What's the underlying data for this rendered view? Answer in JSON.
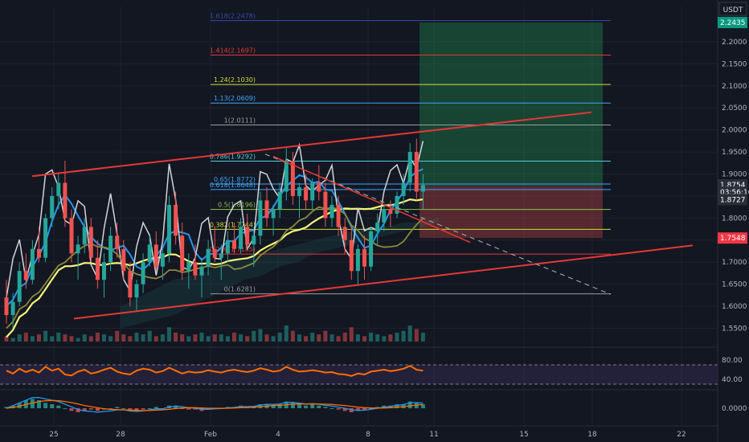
{
  "currency": "USDT",
  "colors": {
    "bg": "#131722",
    "grid": "#1e2230",
    "axis_text": "#b2b5be",
    "bull": "#26a69a",
    "bear": "#ef5350",
    "ma_yellow": "#f5f57a",
    "line_blue": "#2196f3",
    "line_white": "#d1d4dc",
    "line_olive": "#8a8a3c",
    "trend_red": "#e53935",
    "rsi_line": "#ff6d00",
    "macd_blue": "#2196f3",
    "macd_orange": "#ff6d00"
  },
  "price_axis": {
    "ticks": [
      "2.2000",
      "2.1500",
      "2.1000",
      "2.0500",
      "2.0000",
      "1.9500",
      "1.9000",
      "1.8500",
      "1.8000",
      "1.7500",
      "1.7000",
      "1.6500",
      "1.6000",
      "1.5500"
    ],
    "tick_values": [
      2.2,
      2.15,
      2.1,
      2.05,
      2.0,
      1.95,
      1.9,
      1.85,
      1.8,
      1.75,
      1.7,
      1.65,
      1.6,
      1.55
    ],
    "badges": [
      {
        "label": "2.2435",
        "value": 2.2435,
        "color": "#089981"
      },
      {
        "label": "1.8754",
        "value": 1.8754,
        "color": "#2a2e39"
      },
      {
        "label": "03:56:16",
        "value": 1.8588,
        "color": "#2a2e39"
      },
      {
        "label": "1.8727",
        "value": 1.842,
        "color": "#2a2e39"
      },
      {
        "label": "1.7548",
        "value": 1.7548,
        "color": "#f23645"
      }
    ]
  },
  "rsi_axis": {
    "ticks": [
      "80.00",
      "40.00"
    ]
  },
  "macd_axis": {
    "ticks": [
      "0.0000"
    ]
  },
  "time_axis": {
    "ticks": [
      "25",
      "28",
      "Feb",
      "4",
      "8",
      "11",
      "15",
      "18",
      "22"
    ]
  },
  "fib_levels": [
    {
      "label": "1.618(2.2478)",
      "value": 2.2478,
      "color": "#3949ab"
    },
    {
      "label": "1.414(2.1697)",
      "value": 2.1697,
      "color": "#e53935"
    },
    {
      "label": "1.24(2.1030)",
      "value": 2.103,
      "color": "#cddc39"
    },
    {
      "label": "1.13(2.0609)",
      "value": 2.0609,
      "color": "#42a5f5"
    },
    {
      "label": "1(2.0111)",
      "value": 2.0111,
      "color": "#9e9e9e"
    },
    {
      "label": "0.786(1.9292)",
      "value": 1.9292,
      "color": "#4dd0e1"
    },
    {
      "label": "0.65(1.8772)",
      "value": 1.8772,
      "color": "#42a5f5"
    },
    {
      "label": "0.618(1.8648)",
      "value": 1.8648,
      "color": "#42a5f5"
    },
    {
      "label": "0.5(1.8196)",
      "value": 1.8196,
      "color": "#8bc34a"
    },
    {
      "label": "0.382(1.7744)",
      "value": 1.7744,
      "color": "#cddc39"
    },
    {
      "label": "0.236(1.7185)",
      "value": 1.7185,
      "color": "#e53935"
    },
    {
      "label": "0(1.6281)",
      "value": 1.6281,
      "color": "#9e9e9e"
    }
  ],
  "chart_data": {
    "type": "candlestick",
    "symbol_quote": "USDT",
    "x_labels": [
      "25",
      "28",
      "Feb",
      "4",
      "8",
      "11",
      "15",
      "18",
      "22"
    ],
    "y_range": [
      1.52,
      2.28
    ],
    "position": {
      "entry": 1.8727,
      "target": 2.2435,
      "stop": 1.7548
    },
    "candles_ohlc": [
      [
        1.62,
        1.66,
        1.56,
        1.58
      ],
      [
        1.58,
        1.63,
        1.55,
        1.61
      ],
      [
        1.61,
        1.7,
        1.6,
        1.68
      ],
      [
        1.68,
        1.72,
        1.64,
        1.66
      ],
      [
        1.66,
        1.75,
        1.65,
        1.73
      ],
      [
        1.73,
        1.78,
        1.7,
        1.71
      ],
      [
        1.71,
        1.81,
        1.7,
        1.8
      ],
      [
        1.8,
        1.87,
        1.78,
        1.85
      ],
      [
        1.85,
        1.9,
        1.82,
        1.88
      ],
      [
        1.88,
        1.93,
        1.78,
        1.8
      ],
      [
        1.8,
        1.82,
        1.7,
        1.72
      ],
      [
        1.72,
        1.76,
        1.66,
        1.74
      ],
      [
        1.74,
        1.8,
        1.72,
        1.78
      ],
      [
        1.78,
        1.8,
        1.7,
        1.71
      ],
      [
        1.71,
        1.75,
        1.64,
        1.66
      ],
      [
        1.66,
        1.72,
        1.62,
        1.7
      ],
      [
        1.7,
        1.78,
        1.68,
        1.76
      ],
      [
        1.76,
        1.79,
        1.71,
        1.73
      ],
      [
        1.73,
        1.75,
        1.66,
        1.68
      ],
      [
        1.68,
        1.7,
        1.6,
        1.62
      ],
      [
        1.62,
        1.66,
        1.59,
        1.65
      ],
      [
        1.65,
        1.72,
        1.63,
        1.7
      ],
      [
        1.7,
        1.76,
        1.69,
        1.74
      ],
      [
        1.74,
        1.77,
        1.68,
        1.69
      ],
      [
        1.69,
        1.73,
        1.66,
        1.72
      ],
      [
        1.72,
        1.85,
        1.7,
        1.83
      ],
      [
        1.83,
        1.86,
        1.74,
        1.76
      ],
      [
        1.76,
        1.79,
        1.66,
        1.68
      ],
      [
        1.68,
        1.72,
        1.64,
        1.7
      ],
      [
        1.7,
        1.74,
        1.66,
        1.67
      ],
      [
        1.67,
        1.71,
        1.62,
        1.69
      ],
      [
        1.69,
        1.75,
        1.67,
        1.73
      ],
      [
        1.73,
        1.78,
        1.7,
        1.71
      ],
      [
        1.71,
        1.74,
        1.66,
        1.72
      ],
      [
        1.72,
        1.77,
        1.7,
        1.75
      ],
      [
        1.75,
        1.79,
        1.72,
        1.73
      ],
      [
        1.73,
        1.8,
        1.72,
        1.78
      ],
      [
        1.78,
        1.81,
        1.73,
        1.74
      ],
      [
        1.74,
        1.77,
        1.69,
        1.76
      ],
      [
        1.76,
        1.86,
        1.74,
        1.84
      ],
      [
        1.84,
        1.87,
        1.78,
        1.8
      ],
      [
        1.8,
        1.83,
        1.76,
        1.82
      ],
      [
        1.82,
        1.88,
        1.8,
        1.86
      ],
      [
        1.86,
        1.96,
        1.84,
        1.93
      ],
      [
        1.93,
        1.95,
        1.83,
        1.85
      ],
      [
        1.85,
        1.88,
        1.8,
        1.87
      ],
      [
        1.87,
        1.9,
        1.82,
        1.84
      ],
      [
        1.84,
        1.89,
        1.82,
        1.88
      ],
      [
        1.88,
        1.92,
        1.84,
        1.86
      ],
      [
        1.86,
        1.88,
        1.78,
        1.8
      ],
      [
        1.8,
        1.85,
        1.78,
        1.83
      ],
      [
        1.83,
        1.85,
        1.76,
        1.78
      ],
      [
        1.78,
        1.8,
        1.72,
        1.75
      ],
      [
        1.75,
        1.78,
        1.66,
        1.68
      ],
      [
        1.68,
        1.74,
        1.65,
        1.73
      ],
      [
        1.73,
        1.76,
        1.66,
        1.69
      ],
      [
        1.69,
        1.78,
        1.68,
        1.77
      ],
      [
        1.77,
        1.81,
        1.74,
        1.79
      ],
      [
        1.79,
        1.83,
        1.77,
        1.82
      ],
      [
        1.82,
        1.84,
        1.78,
        1.81
      ],
      [
        1.81,
        1.86,
        1.8,
        1.85
      ],
      [
        1.85,
        1.9,
        1.83,
        1.88
      ],
      [
        1.88,
        1.97,
        1.86,
        1.95
      ],
      [
        1.95,
        1.98,
        1.84,
        1.86
      ],
      [
        1.86,
        1.9,
        1.82,
        1.875
      ]
    ],
    "volume": [
      3,
      2,
      4,
      5,
      3,
      4,
      6,
      3,
      5,
      4,
      3,
      2,
      4,
      3,
      5,
      4,
      3,
      6,
      4,
      3,
      5,
      4,
      6,
      3,
      4,
      8,
      5,
      4,
      3,
      4,
      5,
      3,
      4,
      4,
      3,
      5,
      4,
      3,
      6,
      7,
      4,
      3,
      5,
      9,
      6,
      4,
      3,
      5,
      4,
      6,
      4,
      3,
      5,
      8,
      4,
      3,
      5,
      4,
      3,
      4,
      5,
      6,
      9,
      7,
      5
    ],
    "rsi_range": [
      20,
      100
    ],
    "rsi": [
      58,
      52,
      62,
      55,
      60,
      54,
      66,
      58,
      62,
      50,
      48,
      56,
      60,
      52,
      55,
      60,
      64,
      56,
      52,
      50,
      58,
      62,
      60,
      54,
      57,
      64,
      58,
      52,
      56,
      54,
      55,
      59,
      56,
      54,
      58,
      60,
      57,
      55,
      58,
      63,
      60,
      56,
      58,
      66,
      60,
      56,
      57,
      59,
      57,
      54,
      55,
      51,
      50,
      47,
      52,
      50,
      56,
      58,
      60,
      57,
      59,
      62,
      68,
      60,
      58
    ],
    "macd_range": [
      -0.06,
      0.06
    ],
    "macd_hist": [
      0.005,
      0.01,
      0.02,
      0.03,
      0.035,
      0.03,
      0.02,
      0.015,
      0.01,
      0.0,
      -0.01,
      -0.015,
      -0.01,
      -0.005,
      -0.01,
      -0.005,
      0.0,
      0.005,
      0.0,
      -0.005,
      -0.01,
      -0.005,
      0.0,
      0.005,
      0.0,
      0.01,
      0.01,
      0.0,
      -0.005,
      -0.005,
      -0.01,
      -0.005,
      0.0,
      0.0,
      0.005,
      0.005,
      0.01,
      0.005,
      0.005,
      0.015,
      0.015,
      0.01,
      0.015,
      0.025,
      0.02,
      0.015,
      0.01,
      0.015,
      0.01,
      0.005,
      0.0,
      -0.005,
      -0.01,
      -0.015,
      -0.01,
      -0.005,
      0.0,
      0.005,
      0.01,
      0.01,
      0.015,
      0.015,
      0.025,
      0.02,
      0.015
    ],
    "macd_line": [
      0.0,
      0.01,
      0.02,
      0.03,
      0.04,
      0.04,
      0.035,
      0.03,
      0.025,
      0.015,
      0.005,
      -0.005,
      -0.01,
      -0.012,
      -0.015,
      -0.012,
      -0.01,
      -0.006,
      -0.006,
      -0.01,
      -0.012,
      -0.01,
      -0.006,
      -0.002,
      -0.002,
      0.004,
      0.008,
      0.006,
      0.002,
      0.0,
      -0.004,
      -0.004,
      -0.002,
      -0.001,
      0.001,
      0.003,
      0.006,
      0.006,
      0.007,
      0.012,
      0.015,
      0.014,
      0.016,
      0.022,
      0.022,
      0.019,
      0.016,
      0.017,
      0.015,
      0.011,
      0.008,
      0.004,
      0.0,
      -0.006,
      -0.008,
      -0.007,
      -0.004,
      0.0,
      0.004,
      0.007,
      0.011,
      0.014,
      0.02,
      0.021,
      0.019
    ],
    "macd_signal": [
      0.0,
      0.003,
      0.008,
      0.014,
      0.02,
      0.025,
      0.028,
      0.029,
      0.028,
      0.025,
      0.021,
      0.016,
      0.01,
      0.006,
      0.002,
      -0.002,
      -0.004,
      -0.005,
      -0.006,
      -0.007,
      -0.008,
      -0.009,
      -0.008,
      -0.007,
      -0.006,
      -0.004,
      -0.001,
      0.001,
      0.002,
      0.002,
      0.001,
      0.0,
      0.0,
      0.0,
      0.0,
      0.001,
      0.002,
      0.003,
      0.004,
      0.006,
      0.008,
      0.01,
      0.011,
      0.013,
      0.015,
      0.016,
      0.016,
      0.016,
      0.016,
      0.015,
      0.014,
      0.012,
      0.01,
      0.007,
      0.004,
      0.002,
      0.001,
      0.001,
      0.001,
      0.002,
      0.004,
      0.006,
      0.009,
      0.012,
      0.014
    ]
  }
}
